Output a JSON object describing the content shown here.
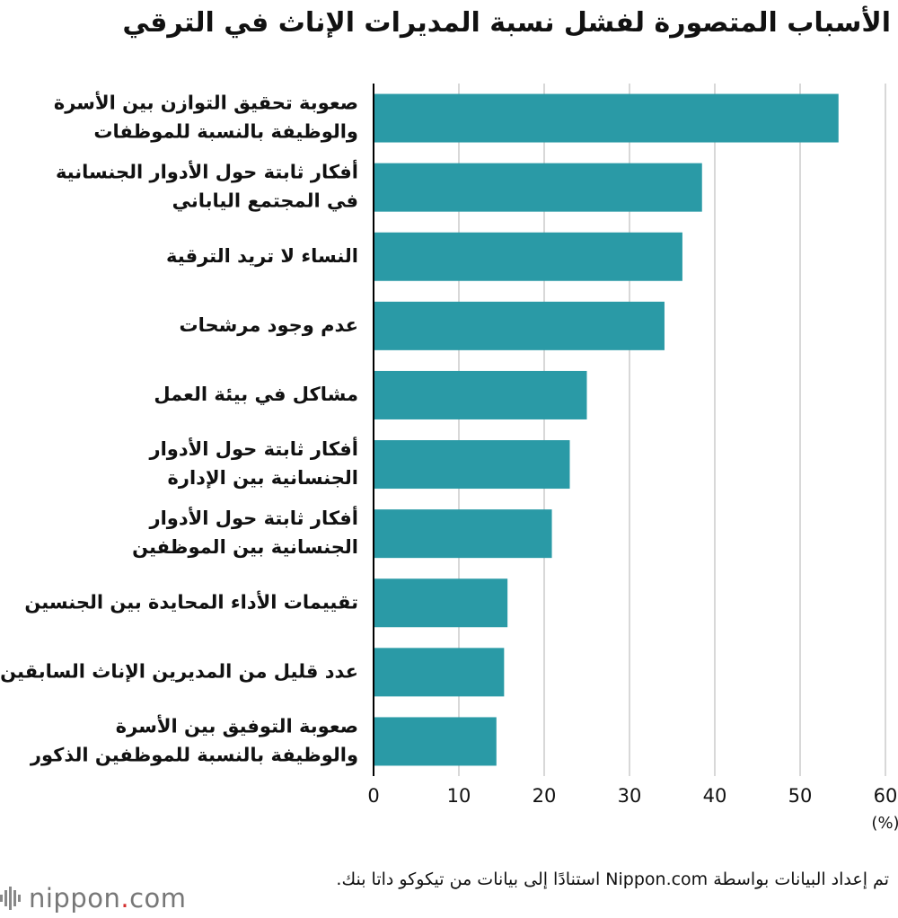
{
  "title": "الأسباب المتصورة لفشل نسبة المديرات الإناث في الترقي",
  "source_note": "تم إعداد البيانات بواسطة Nippon.com استنادًا إلى بيانات من تيكوكو داتا بنك.",
  "logo": {
    "name": "nippon",
    "dot": ".",
    "suffix": "com"
  },
  "colors": {
    "bar": "#2a9aa6",
    "grid": "#cccccc",
    "axis": "#000000"
  },
  "chart_data": {
    "type": "bar",
    "orientation": "horizontal",
    "categories": [
      [
        "صعوبة تحقيق التوازن بين الأسرة",
        "والوظيفة بالنسبة للموظفات"
      ],
      [
        "أفكار ثابتة حول الأدوار الجنسانية",
        "في المجتمع الياباني"
      ],
      [
        "النساء لا تريد الترقية"
      ],
      [
        "عدم وجود مرشحات"
      ],
      [
        "مشاكل في بيئة العمل"
      ],
      [
        "أفكار ثابتة حول الأدوار",
        "الجنسانية بين الإدارة"
      ],
      [
        "أفكار ثابتة حول الأدوار",
        "الجنسانية بين الموظفين"
      ],
      [
        "تقييمات الأداء المحايدة بين الجنسين"
      ],
      [
        "عدد قليل من المديرين الإناث السابقين"
      ],
      [
        "صعوبة التوفيق بين الأسرة",
        "والوظيفة بالنسبة للموظفين الذكور"
      ]
    ],
    "values": [
      54.5,
      38.5,
      36.2,
      34.1,
      25.0,
      23.0,
      20.9,
      15.7,
      15.3,
      14.4
    ],
    "xlim": [
      0,
      60
    ],
    "xticks": [
      0,
      10,
      20,
      30,
      40,
      50,
      60
    ],
    "xlabel": "(%)",
    "grid": true
  }
}
